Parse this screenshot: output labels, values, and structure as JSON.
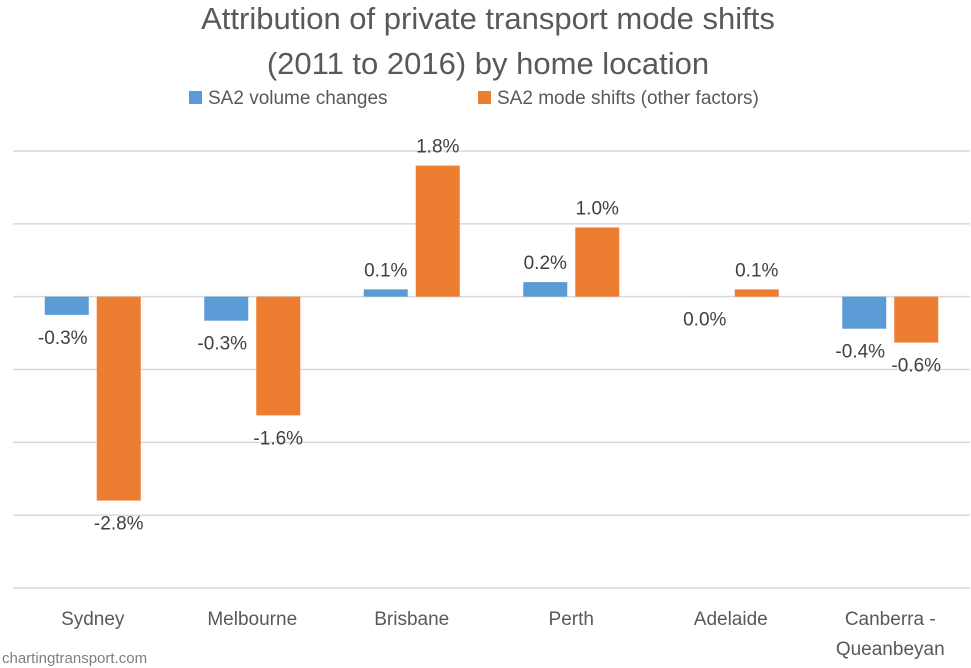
{
  "chart_data": {
    "type": "bar",
    "title": [
      "Attribution of private transport mode shifts",
      "(2011 to 2016) by home location"
    ],
    "categories": [
      [
        "Sydney"
      ],
      [
        "Melbourne"
      ],
      [
        "Brisbane"
      ],
      [
        "Perth"
      ],
      [
        "Adelaide"
      ],
      [
        "Canberra -",
        "Queanbeyan"
      ]
    ],
    "series": [
      {
        "name": "SA2 volume changes",
        "color": "#5B9BD5",
        "values": [
          -0.25,
          -0.33,
          0.1,
          0.2,
          0.0,
          -0.44
        ],
        "labels": [
          "-0.3%",
          "-0.3%",
          "0.1%",
          "0.2%",
          "0.0%",
          "-0.4%"
        ]
      },
      {
        "name": "SA2 mode shifts (other factors)",
        "color": "#ED7D31",
        "values": [
          -2.8,
          -1.63,
          1.8,
          0.95,
          0.1,
          -0.63
        ],
        "labels": [
          "-2.8%",
          "-1.6%",
          "1.8%",
          "1.0%",
          "0.1%",
          "-0.6%"
        ]
      }
    ],
    "ylim": [
      -4,
      2
    ],
    "grid": true,
    "legend_position": "top",
    "xlabel": "",
    "ylabel": ""
  },
  "footer": "chartingtransport.com"
}
